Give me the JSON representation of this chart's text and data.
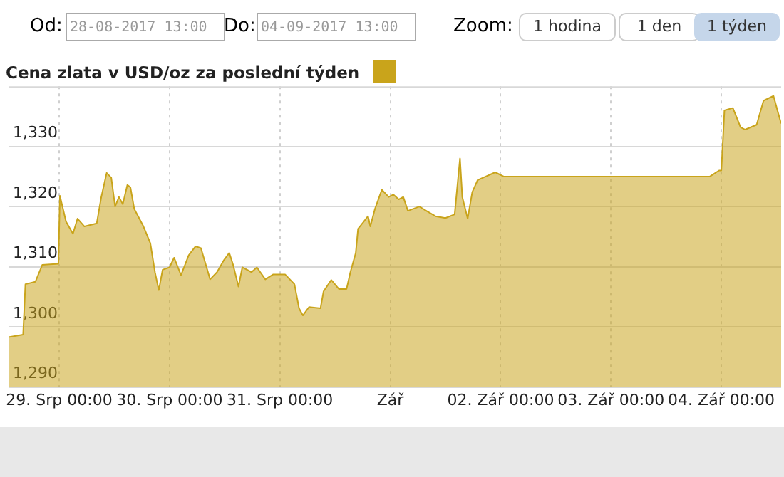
{
  "chart_data": {
    "type": "area",
    "title": "Cena zlata v USD/oz za poslední týden",
    "annotations": [
      "Od:",
      "28-08-2017 13:00",
      "Do:",
      "04-09-2017 13:00",
      "Zoom:",
      "1 hodina",
      "1 den",
      "1 týden"
    ],
    "x": [
      "2017-08-28T13:00",
      "2017-08-28T16:10",
      "2017-08-28T16:40",
      "2017-08-28T18:50",
      "2017-08-28T20:20",
      "2017-08-28T23:50",
      "2017-08-29T00:10",
      "2017-08-29T01:30",
      "2017-08-29T03:00",
      "2017-08-29T04:00",
      "2017-08-29T05:30",
      "2017-08-29T08:10",
      "2017-08-29T09:10",
      "2017-08-29T10:20",
      "2017-08-29T11:20",
      "2017-08-29T12:10",
      "2017-08-29T13:00",
      "2017-08-29T13:50",
      "2017-08-29T14:50",
      "2017-08-29T15:30",
      "2017-08-29T16:20",
      "2017-08-29T18:20",
      "2017-08-29T19:50",
      "2017-08-29T20:50",
      "2017-08-29T21:40",
      "2017-08-29T22:30",
      "2017-08-30T00:00",
      "2017-08-30T01:00",
      "2017-08-30T02:30",
      "2017-08-30T04:10",
      "2017-08-30T05:40",
      "2017-08-30T06:50",
      "2017-08-30T08:50",
      "2017-08-30T10:20",
      "2017-08-30T11:50",
      "2017-08-30T13:00",
      "2017-08-30T13:50",
      "2017-08-30T15:00",
      "2017-08-30T15:50",
      "2017-08-30T17:50",
      "2017-08-30T19:00",
      "2017-08-30T20:50",
      "2017-08-30T22:30",
      "2017-08-31T01:10",
      "2017-08-31T03:10",
      "2017-08-31T04:10",
      "2017-08-31T05:00",
      "2017-08-31T06:20",
      "2017-08-31T08:50",
      "2017-08-31T09:30",
      "2017-08-31T11:10",
      "2017-08-31T12:50",
      "2017-08-31T14:30",
      "2017-08-31T15:20",
      "2017-08-31T16:30",
      "2017-08-31T17:00",
      "2017-08-31T19:10",
      "2017-08-31T19:40",
      "2017-08-31T20:40",
      "2017-08-31T22:10",
      "2017-08-31T23:40",
      "2017-09-01T00:40",
      "2017-09-01T01:50",
      "2017-09-01T02:50",
      "2017-09-01T03:50",
      "2017-09-01T06:20",
      "2017-09-01T07:50",
      "2017-09-01T09:50",
      "2017-09-01T12:00",
      "2017-09-01T14:00",
      "2017-09-01T15:10",
      "2017-09-01T15:40",
      "2017-09-01T16:50",
      "2017-09-01T17:50",
      "2017-09-01T19:00",
      "2017-09-01T20:10",
      "2017-09-01T22:50",
      "2017-09-02T00:40",
      "2017-09-03T21:30",
      "2017-09-03T23:30",
      "2017-09-04T00:00",
      "2017-09-04T00:40",
      "2017-09-04T02:30",
      "2017-09-04T04:10",
      "2017-09-04T05:10",
      "2017-09-04T07:40",
      "2017-09-04T09:10",
      "2017-09-04T11:20",
      "2017-09-04T12:20",
      "2017-09-04T13:00"
    ],
    "series": [
      {
        "color": "#c9a41b",
        "values": [
          1298.3,
          1298.7,
          1307.1,
          1307.5,
          1310.3,
          1310.5,
          1321.8,
          1317.5,
          1315.5,
          1318,
          1316.7,
          1317.2,
          1321.6,
          1325.6,
          1324.8,
          1320,
          1321.6,
          1320.4,
          1323.6,
          1323.2,
          1319.6,
          1316.7,
          1313.9,
          1309.1,
          1306.1,
          1309.5,
          1309.9,
          1311.5,
          1308.6,
          1311.9,
          1313.4,
          1313.1,
          1307.9,
          1309.1,
          1311.1,
          1312.3,
          1310.3,
          1306.7,
          1309.9,
          1309.1,
          1309.9,
          1307.9,
          1308.7,
          1308.7,
          1307.1,
          1303.1,
          1301.9,
          1303.3,
          1303.1,
          1305.9,
          1307.8,
          1306.3,
          1306.3,
          1309.1,
          1312.3,
          1316.3,
          1318.4,
          1316.7,
          1319.6,
          1322.8,
          1321.6,
          1322,
          1321.2,
          1321.6,
          1319.3,
          1320,
          1319.3,
          1318.4,
          1318.1,
          1318.7,
          1328,
          1321.6,
          1318,
          1322.4,
          1324.4,
          1324.8,
          1325.7,
          1325,
          1325,
          1326,
          1326,
          1336,
          1336.4,
          1333.2,
          1332.8,
          1333.6,
          1337.6,
          1338.4,
          1335.6,
          1333.8
        ]
      }
    ],
    "xlim": [
      "2017-08-28T13:00",
      "2017-09-04T13:00"
    ],
    "xticks": [
      {
        "value": "2017-08-29T00:00",
        "label": "29. Srp 00:00"
      },
      {
        "value": "2017-08-30T00:00",
        "label": "30. Srp 00:00"
      },
      {
        "value": "2017-08-31T00:00",
        "label": "31. Srp 00:00"
      },
      {
        "value": "2017-09-01T00:00",
        "label": "Zář"
      },
      {
        "value": "2017-09-02T00:00",
        "label": "02. Zář 00:00"
      },
      {
        "value": "2017-09-03T00:00",
        "label": "03. Zář 00:00"
      },
      {
        "value": "2017-09-04T00:00",
        "label": "04. Zář 00:00"
      }
    ],
    "ylim": [
      1290,
      1340
    ],
    "yticks": [
      {
        "value": 1290,
        "label": "1,290"
      },
      {
        "value": 1300,
        "label": "1,300"
      },
      {
        "value": 1310,
        "label": "1,310"
      },
      {
        "value": 1320,
        "label": "1,320"
      },
      {
        "value": 1330,
        "label": "1,330"
      }
    ],
    "grid": true
  }
}
